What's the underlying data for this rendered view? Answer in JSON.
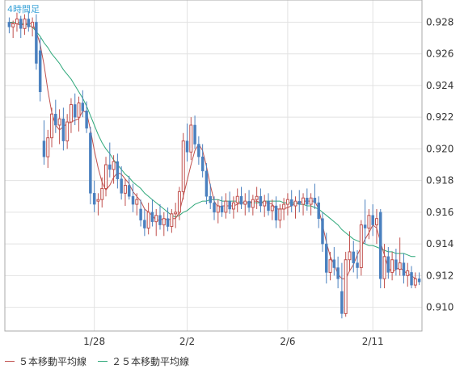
{
  "timeframe": "4時間足",
  "legend": [
    {
      "label": "５本移動平均線",
      "color": "#c0504d"
    },
    {
      "label": "２５本移動平均線",
      "color": "#2ea87a"
    }
  ],
  "colors": {
    "bull": "#c0504d",
    "bear": "#4a80bf",
    "ma5": "#c0504d",
    "ma25": "#2ea87a",
    "grid": "#e2e2e2",
    "axis_text": "#333333",
    "frame": "#aaaaaa"
  },
  "chart_data": {
    "type": "candlestick",
    "title": "",
    "xlabel": "",
    "ylabel": "",
    "ylim": [
      0.9085,
      0.9294
    ],
    "y_ticks": [
      "0.910",
      "0.912",
      "0.914",
      "0.916",
      "0.918",
      "0.920",
      "0.922",
      "0.924",
      "0.926",
      "0.928"
    ],
    "x_ticks": [
      {
        "index": 22,
        "label": "1/28"
      },
      {
        "index": 46,
        "label": "2/2"
      },
      {
        "index": 72,
        "label": "2/6"
      },
      {
        "index": 94,
        "label": "2/11"
      }
    ],
    "ohlc": [
      [
        0.928,
        0.9283,
        0.9273,
        0.9277
      ],
      [
        0.9277,
        0.9281,
        0.927,
        0.9279
      ],
      [
        0.9279,
        0.9286,
        0.9274,
        0.9282
      ],
      [
        0.9282,
        0.9284,
        0.927,
        0.9276
      ],
      [
        0.9276,
        0.9285,
        0.9272,
        0.9282
      ],
      [
        0.9282,
        0.9287,
        0.9274,
        0.9277
      ],
      [
        0.9277,
        0.9283,
        0.9271,
        0.928
      ],
      [
        0.928,
        0.9285,
        0.925,
        0.9254
      ],
      [
        0.9262,
        0.927,
        0.923,
        0.9236
      ],
      [
        0.9205,
        0.9218,
        0.919,
        0.9195
      ],
      [
        0.9195,
        0.9212,
        0.9188,
        0.9207
      ],
      [
        0.9207,
        0.9226,
        0.9201,
        0.9222
      ],
      [
        0.9222,
        0.9231,
        0.921,
        0.9215
      ],
      [
        0.9215,
        0.9225,
        0.9203,
        0.9219
      ],
      [
        0.9219,
        0.9226,
        0.9199,
        0.9205
      ],
      [
        0.9205,
        0.9222,
        0.92,
        0.9217
      ],
      [
        0.9217,
        0.9232,
        0.921,
        0.9228
      ],
      [
        0.9228,
        0.9235,
        0.9215,
        0.922
      ],
      [
        0.922,
        0.9233,
        0.9211,
        0.9229
      ],
      [
        0.9229,
        0.9237,
        0.922,
        0.9224
      ],
      [
        0.9224,
        0.923,
        0.921,
        0.9213
      ],
      [
        0.921,
        0.9214,
        0.9165,
        0.9172
      ],
      [
        0.9172,
        0.918,
        0.916,
        0.9165
      ],
      [
        0.9167,
        0.9172,
        0.9158,
        0.9168
      ],
      [
        0.9168,
        0.9182,
        0.9163,
        0.9175
      ],
      [
        0.9175,
        0.9195,
        0.917,
        0.919
      ],
      [
        0.919,
        0.9204,
        0.9182,
        0.9187
      ],
      [
        0.9187,
        0.9196,
        0.9178,
        0.9192
      ],
      [
        0.9192,
        0.9197,
        0.9175,
        0.9181
      ],
      [
        0.9181,
        0.9189,
        0.9168,
        0.9172
      ],
      [
        0.9172,
        0.9181,
        0.9164,
        0.9177
      ],
      [
        0.9177,
        0.9183,
        0.9168,
        0.917
      ],
      [
        0.917,
        0.9178,
        0.916,
        0.9165
      ],
      [
        0.9165,
        0.9172,
        0.9158,
        0.9168
      ],
      [
        0.9162,
        0.9168,
        0.9151,
        0.9155
      ],
      [
        0.9155,
        0.9162,
        0.9145,
        0.915
      ],
      [
        0.915,
        0.9166,
        0.9146,
        0.916
      ],
      [
        0.916,
        0.9168,
        0.9151,
        0.9154
      ],
      [
        0.9154,
        0.9162,
        0.9145,
        0.9158
      ],
      [
        0.9158,
        0.9165,
        0.9149,
        0.9152
      ],
      [
        0.9152,
        0.916,
        0.9145,
        0.9156
      ],
      [
        0.9156,
        0.9163,
        0.9148,
        0.9151
      ],
      [
        0.9151,
        0.9162,
        0.9147,
        0.9159
      ],
      [
        0.9159,
        0.9166,
        0.915,
        0.916
      ],
      [
        0.916,
        0.9176,
        0.9155,
        0.9173
      ],
      [
        0.9173,
        0.921,
        0.9168,
        0.9205
      ],
      [
        0.9205,
        0.9216,
        0.9192,
        0.9198
      ],
      [
        0.9198,
        0.922,
        0.9193,
        0.9215
      ],
      [
        0.9215,
        0.9221,
        0.92,
        0.9203
      ],
      [
        0.9203,
        0.9208,
        0.919,
        0.9195
      ],
      [
        0.9195,
        0.9203,
        0.9182,
        0.9186
      ],
      [
        0.9186,
        0.9191,
        0.9165,
        0.917
      ],
      [
        0.917,
        0.9178,
        0.9162,
        0.9166
      ],
      [
        0.9166,
        0.917,
        0.9155,
        0.916
      ],
      [
        0.916,
        0.9168,
        0.9153,
        0.9164
      ],
      [
        0.9164,
        0.917,
        0.9157,
        0.916
      ],
      [
        0.916,
        0.9172,
        0.9156,
        0.9167
      ],
      [
        0.9167,
        0.9173,
        0.9159,
        0.9162
      ],
      [
        0.9162,
        0.917,
        0.9156,
        0.9166
      ],
      [
        0.9166,
        0.9175,
        0.916,
        0.917
      ],
      [
        0.917,
        0.9176,
        0.9162,
        0.9165
      ],
      [
        0.9165,
        0.9172,
        0.9158,
        0.9167
      ],
      [
        0.9167,
        0.9174,
        0.916,
        0.9163
      ],
      [
        0.9163,
        0.9171,
        0.9158,
        0.9168
      ],
      [
        0.9168,
        0.9176,
        0.9162,
        0.917
      ],
      [
        0.917,
        0.9175,
        0.916,
        0.9164
      ],
      [
        0.9164,
        0.9171,
        0.9157,
        0.9167
      ],
      [
        0.9167,
        0.9172,
        0.9158,
        0.9161
      ],
      [
        0.9161,
        0.9168,
        0.9155,
        0.9164
      ],
      [
        0.9164,
        0.917,
        0.915,
        0.9155
      ],
      [
        0.9155,
        0.9165,
        0.915,
        0.9162
      ],
      [
        0.9162,
        0.9169,
        0.9155,
        0.9165
      ],
      [
        0.9165,
        0.9172,
        0.9158,
        0.9168
      ],
      [
        0.9168,
        0.9174,
        0.916,
        0.9164
      ],
      [
        0.9164,
        0.917,
        0.9156,
        0.9167
      ],
      [
        0.9167,
        0.9174,
        0.916,
        0.9165
      ],
      [
        0.9165,
        0.9172,
        0.9158,
        0.9169
      ],
      [
        0.9169,
        0.9175,
        0.9161,
        0.9165
      ],
      [
        0.9165,
        0.9172,
        0.9158,
        0.9169
      ],
      [
        0.9169,
        0.9178,
        0.9162,
        0.9166
      ],
      [
        0.9166,
        0.917,
        0.915,
        0.9156
      ],
      [
        0.9156,
        0.916,
        0.9135,
        0.914
      ],
      [
        0.914,
        0.9147,
        0.9115,
        0.9122
      ],
      [
        0.9122,
        0.9135,
        0.9117,
        0.913
      ],
      [
        0.913,
        0.9138,
        0.912,
        0.9125
      ],
      [
        0.9125,
        0.9132,
        0.9112,
        0.9118
      ],
      [
        0.911,
        0.9128,
        0.9093,
        0.9096
      ],
      [
        0.9096,
        0.9135,
        0.9094,
        0.913
      ],
      [
        0.913,
        0.9148,
        0.9123,
        0.9135
      ],
      [
        0.9135,
        0.9142,
        0.9122,
        0.9128
      ],
      [
        0.9128,
        0.9136,
        0.9118,
        0.9125
      ],
      [
        0.9125,
        0.9155,
        0.912,
        0.9152
      ],
      [
        0.9152,
        0.9168,
        0.914,
        0.915
      ],
      [
        0.915,
        0.9162,
        0.9143,
        0.9158
      ],
      [
        0.9158,
        0.9165,
        0.9145,
        0.9152
      ],
      [
        0.9152,
        0.9162,
        0.914,
        0.9156
      ],
      [
        0.916,
        0.9162,
        0.9112,
        0.9118
      ],
      [
        0.9118,
        0.914,
        0.9112,
        0.9132
      ],
      [
        0.9132,
        0.9138,
        0.9118,
        0.9122
      ],
      [
        0.9122,
        0.9135,
        0.9117,
        0.913
      ],
      [
        0.913,
        0.9137,
        0.912,
        0.9124
      ],
      [
        0.9124,
        0.9144,
        0.912,
        0.9128
      ],
      [
        0.9128,
        0.9134,
        0.9115,
        0.912
      ],
      [
        0.912,
        0.9128,
        0.9113,
        0.9123
      ],
      [
        0.9122,
        0.9126,
        0.9112,
        0.9114
      ],
      [
        0.9114,
        0.9122,
        0.9112,
        0.9118
      ],
      [
        0.9118,
        0.9122,
        0.9114,
        0.9116
      ]
    ],
    "ma5": [
      0.928,
      0.9279,
      0.9279,
      0.9278,
      0.9279,
      0.9279,
      0.9279,
      0.9274,
      0.9266,
      0.9253,
      0.9237,
      0.9223,
      0.9215,
      0.9212,
      0.9214,
      0.9216,
      0.9217,
      0.9218,
      0.9219,
      0.9224,
      0.9223,
      0.9212,
      0.9199,
      0.9188,
      0.9179,
      0.9174,
      0.9177,
      0.9182,
      0.9185,
      0.9184,
      0.9181,
      0.9178,
      0.9173,
      0.917,
      0.9167,
      0.9162,
      0.916,
      0.9158,
      0.9155,
      0.9155,
      0.9156,
      0.9155,
      0.9156,
      0.9156,
      0.916,
      0.917,
      0.918,
      0.919,
      0.9199,
      0.9203,
      0.9199,
      0.9189,
      0.9177,
      0.9167,
      0.9163,
      0.9164,
      0.9164,
      0.9164,
      0.9164,
      0.9165,
      0.9166,
      0.9166,
      0.9166,
      0.9167,
      0.9167,
      0.9166,
      0.9166,
      0.9166,
      0.9165,
      0.9162,
      0.9162,
      0.9162,
      0.9163,
      0.9164,
      0.9166,
      0.9166,
      0.9167,
      0.9167,
      0.9167,
      0.9167,
      0.9162,
      0.9152,
      0.9141,
      0.9132,
      0.9127,
      0.9121,
      0.9118,
      0.9118,
      0.9123,
      0.9127,
      0.9133,
      0.9138,
      0.9143,
      0.9147,
      0.9152,
      0.915,
      0.9141,
      0.9133,
      0.9125,
      0.9122,
      0.9124,
      0.9125,
      0.9123,
      0.9121,
      0.912,
      0.9118
    ],
    "ma25": [
      0.928,
      0.928,
      0.928,
      0.9279,
      0.9279,
      0.9278,
      0.9277,
      0.9274,
      0.9271,
      0.9267,
      0.9264,
      0.926,
      0.9257,
      0.9254,
      0.925,
      0.9247,
      0.9244,
      0.924,
      0.9236,
      0.9232,
      0.9227,
      0.9221,
      0.9215,
      0.9209,
      0.9204,
      0.92,
      0.9197,
      0.9193,
      0.919,
      0.9187,
      0.9184,
      0.9182,
      0.9179,
      0.9177,
      0.9175,
      0.9172,
      0.917,
      0.9168,
      0.9166,
      0.9164,
      0.9162,
      0.916,
      0.9158,
      0.9157,
      0.9158,
      0.916,
      0.9161,
      0.9163,
      0.9165,
      0.9166,
      0.9167,
      0.9167,
      0.9168,
      0.9168,
      0.9168,
      0.9167,
      0.9167,
      0.9167,
      0.9167,
      0.9167,
      0.9166,
      0.9166,
      0.9166,
      0.9166,
      0.9166,
      0.9166,
      0.9167,
      0.9167,
      0.9167,
      0.9167,
      0.9167,
      0.9166,
      0.9166,
      0.9166,
      0.9166,
      0.9165,
      0.9165,
      0.9164,
      0.9164,
      0.9163,
      0.9162,
      0.916,
      0.9158,
      0.9156,
      0.9154,
      0.9152,
      0.9149,
      0.9147,
      0.9145,
      0.9143,
      0.9142,
      0.9141,
      0.914,
      0.9139,
      0.9139,
      0.9138,
      0.9137,
      0.9136,
      0.9135,
      0.9135,
      0.9134,
      0.9134,
      0.9134,
      0.9133,
      0.9132,
      0.9132
    ]
  }
}
